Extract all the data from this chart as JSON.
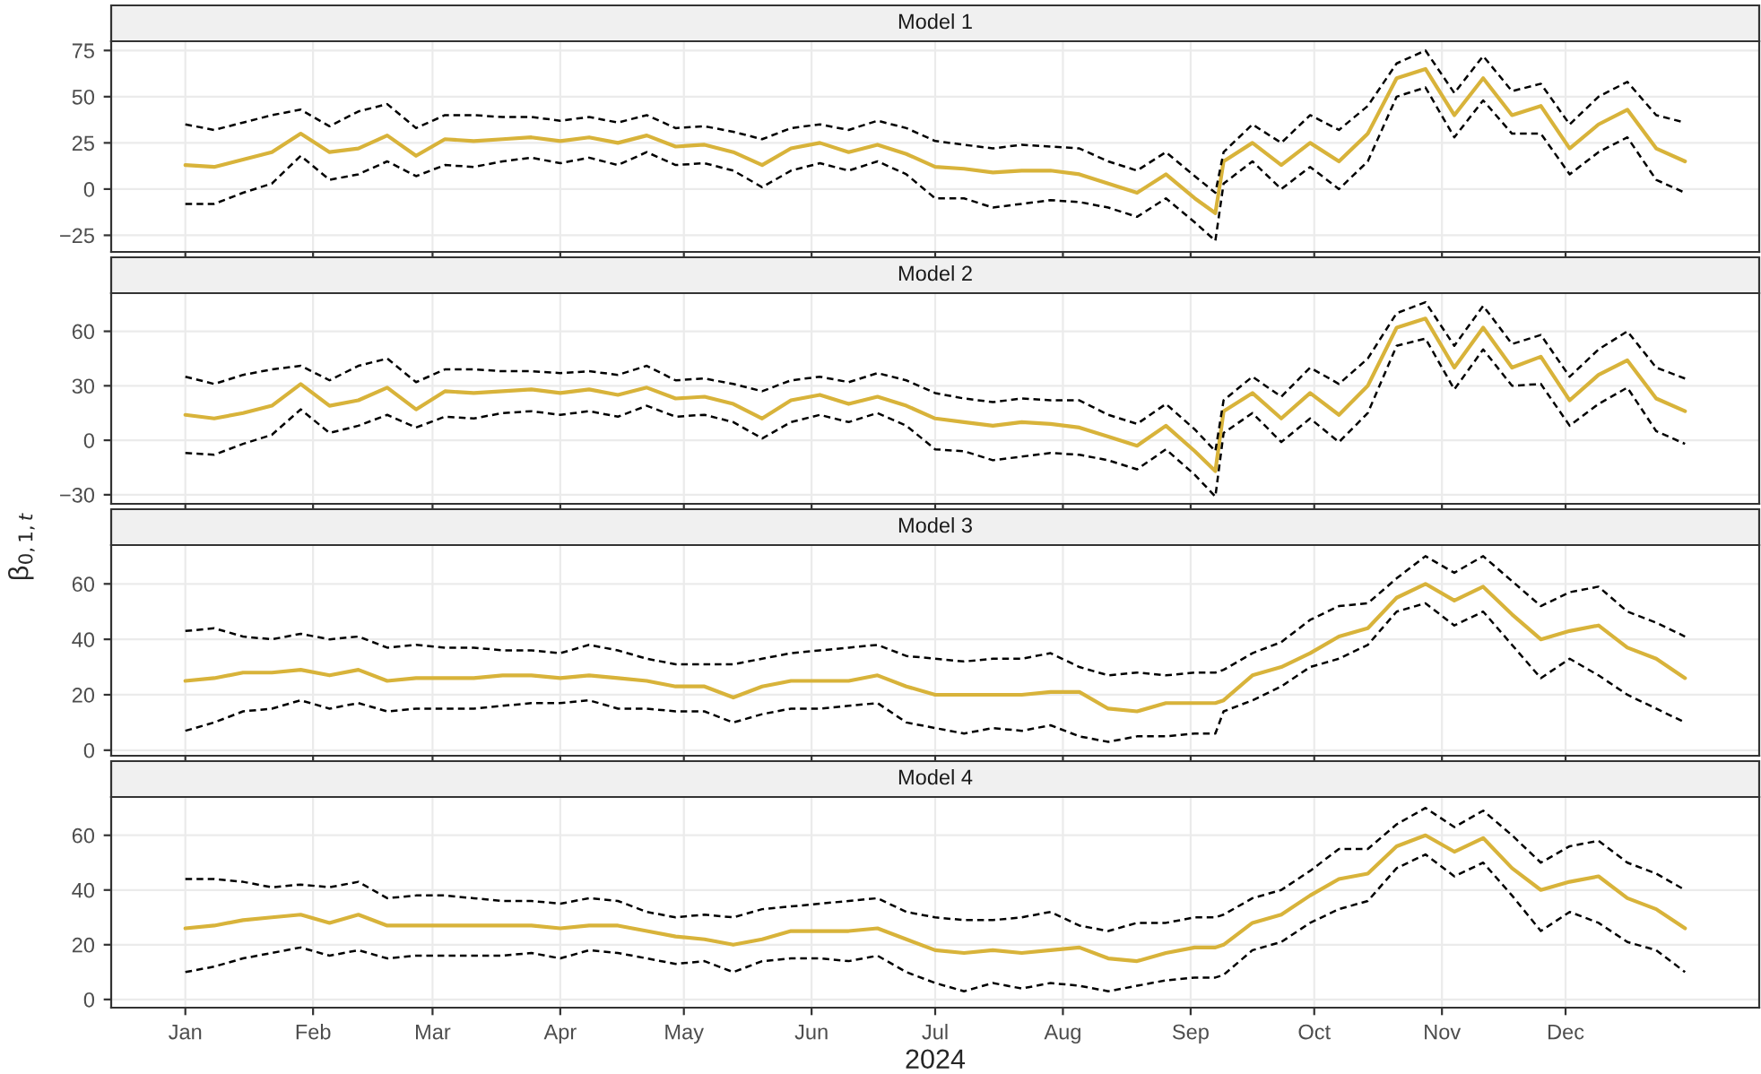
{
  "chart_data": [
    {
      "type": "line",
      "title": "Model 1",
      "x": [
        "2024-01-01",
        "2024-01-08",
        "2024-01-15",
        "2024-01-22",
        "2024-01-29",
        "2024-02-05",
        "2024-02-12",
        "2024-02-19",
        "2024-02-26",
        "2024-03-04",
        "2024-03-11",
        "2024-03-18",
        "2024-03-25",
        "2024-04-01",
        "2024-04-08",
        "2024-04-15",
        "2024-04-22",
        "2024-04-29",
        "2024-05-06",
        "2024-05-13",
        "2024-05-20",
        "2024-05-27",
        "2024-06-03",
        "2024-06-10",
        "2024-06-17",
        "2024-06-24",
        "2024-07-01",
        "2024-07-08",
        "2024-07-15",
        "2024-07-22",
        "2024-07-29",
        "2024-08-05",
        "2024-08-12",
        "2024-08-19",
        "2024-08-26",
        "2024-09-02",
        "2024-09-07",
        "2024-09-09",
        "2024-09-16",
        "2024-09-23",
        "2024-09-30",
        "2024-10-07",
        "2024-10-14",
        "2024-10-21",
        "2024-10-28",
        "2024-11-04",
        "2024-11-11",
        "2024-11-18",
        "2024-11-25",
        "2024-12-02",
        "2024-12-09",
        "2024-12-16",
        "2024-12-23",
        "2024-12-30"
      ],
      "series": [
        {
          "color": "#d8b33a",
          "line_style": "solid",
          "values": [
            13,
            12,
            16,
            20,
            30,
            20,
            22,
            29,
            18,
            27,
            26,
            27,
            28,
            26,
            28,
            25,
            29,
            23,
            24,
            20,
            13,
            22,
            25,
            20,
            24,
            19,
            12,
            11,
            9,
            10,
            10,
            8,
            3,
            -2,
            8,
            -5,
            -13,
            15,
            25,
            13,
            25,
            15,
            30,
            60,
            65,
            40,
            60,
            40,
            45,
            22,
            35,
            43,
            22,
            15
          ]
        },
        {
          "color": "#000000",
          "line_style": "dashed",
          "values": [
            35,
            32,
            36,
            40,
            43,
            34,
            42,
            46,
            33,
            40,
            40,
            39,
            39,
            37,
            39,
            36,
            40,
            33,
            34,
            31,
            27,
            33,
            35,
            32,
            37,
            33,
            26,
            24,
            22,
            24,
            23,
            22,
            15,
            10,
            20,
            7,
            -2,
            20,
            35,
            25,
            40,
            32,
            45,
            68,
            75,
            52,
            72,
            53,
            57,
            35,
            50,
            58,
            40,
            36
          ]
        },
        {
          "color": "#000000",
          "line_style": "dashed",
          "values": [
            -8,
            -8,
            -2,
            3,
            18,
            5,
            8,
            15,
            7,
            13,
            12,
            15,
            17,
            14,
            17,
            13,
            20,
            13,
            14,
            10,
            1,
            10,
            14,
            10,
            15,
            8,
            -5,
            -5,
            -10,
            -8,
            -6,
            -7,
            -10,
            -15,
            -5,
            -18,
            -28,
            3,
            15,
            0,
            12,
            0,
            15,
            50,
            55,
            28,
            48,
            30,
            30,
            8,
            20,
            28,
            5,
            -2
          ]
        }
      ],
      "xlim": [
        "2023-12-14",
        "2025-01-17"
      ],
      "ylim": [
        -34,
        80
      ],
      "yticks": [
        {
          "value": -25,
          "label": "−25"
        },
        0,
        25,
        50,
        75
      ],
      "xticks": [
        {
          "value": "2024-01-01",
          "label": null
        },
        {
          "value": "2024-02-01",
          "label": null
        },
        {
          "value": "2024-03-01",
          "label": null
        },
        {
          "value": "2024-04-01",
          "label": null
        },
        {
          "value": "2024-05-01",
          "label": null
        },
        {
          "value": "2024-06-01",
          "label": null
        },
        {
          "value": "2024-07-01",
          "label": null
        },
        {
          "value": "2024-08-01",
          "label": null
        },
        {
          "value": "2024-09-01",
          "label": null
        },
        {
          "value": "2024-10-01",
          "label": null
        },
        {
          "value": "2024-11-01",
          "label": null
        },
        {
          "value": "2024-12-01",
          "label": null
        }
      ],
      "tick_labels": "y",
      "grid": true
    },
    {
      "type": "line",
      "title": "Model 2",
      "x": [
        "2024-01-01",
        "2024-01-08",
        "2024-01-15",
        "2024-01-22",
        "2024-01-29",
        "2024-02-05",
        "2024-02-12",
        "2024-02-19",
        "2024-02-26",
        "2024-03-04",
        "2024-03-11",
        "2024-03-18",
        "2024-03-25",
        "2024-04-01",
        "2024-04-08",
        "2024-04-15",
        "2024-04-22",
        "2024-04-29",
        "2024-05-06",
        "2024-05-13",
        "2024-05-20",
        "2024-05-27",
        "2024-06-03",
        "2024-06-10",
        "2024-06-17",
        "2024-06-24",
        "2024-07-01",
        "2024-07-08",
        "2024-07-15",
        "2024-07-22",
        "2024-07-29",
        "2024-08-05",
        "2024-08-12",
        "2024-08-19",
        "2024-08-26",
        "2024-09-02",
        "2024-09-07",
        "2024-09-09",
        "2024-09-16",
        "2024-09-23",
        "2024-09-30",
        "2024-10-07",
        "2024-10-14",
        "2024-10-21",
        "2024-10-28",
        "2024-11-04",
        "2024-11-11",
        "2024-11-18",
        "2024-11-25",
        "2024-12-02",
        "2024-12-09",
        "2024-12-16",
        "2024-12-23",
        "2024-12-30"
      ],
      "series": [
        {
          "color": "#d8b33a",
          "line_style": "solid",
          "values": [
            14,
            12,
            15,
            19,
            31,
            19,
            22,
            29,
            17,
            27,
            26,
            27,
            28,
            26,
            28,
            25,
            29,
            23,
            24,
            20,
            12,
            22,
            25,
            20,
            24,
            19,
            12,
            10,
            8,
            10,
            9,
            7,
            2,
            -3,
            8,
            -6,
            -17,
            16,
            26,
            12,
            26,
            14,
            30,
            62,
            67,
            40,
            62,
            40,
            46,
            22,
            36,
            44,
            23,
            16
          ]
        },
        {
          "color": "#000000",
          "line_style": "dashed",
          "values": [
            35,
            31,
            36,
            39,
            41,
            33,
            41,
            45,
            32,
            39,
            39,
            38,
            38,
            37,
            38,
            36,
            41,
            33,
            34,
            31,
            27,
            33,
            35,
            32,
            37,
            33,
            26,
            23,
            21,
            23,
            22,
            22,
            14,
            9,
            20,
            6,
            -6,
            22,
            35,
            24,
            40,
            31,
            45,
            70,
            76,
            52,
            74,
            53,
            58,
            35,
            50,
            60,
            40,
            34
          ]
        },
        {
          "color": "#000000",
          "line_style": "dashed",
          "values": [
            -7,
            -8,
            -2,
            3,
            17,
            4,
            8,
            14,
            7,
            13,
            12,
            15,
            16,
            14,
            16,
            13,
            19,
            13,
            14,
            10,
            1,
            10,
            14,
            10,
            15,
            8,
            -5,
            -6,
            -11,
            -9,
            -7,
            -8,
            -11,
            -16,
            -5,
            -19,
            -31,
            4,
            15,
            -1,
            12,
            -1,
            15,
            52,
            56,
            28,
            50,
            30,
            31,
            8,
            20,
            29,
            5,
            -2
          ]
        }
      ],
      "xlim": [
        "2023-12-14",
        "2025-01-17"
      ],
      "ylim": [
        -35,
        81
      ],
      "yticks": [
        {
          "value": -30,
          "label": "−30"
        },
        0,
        30,
        60
      ],
      "xticks": [
        {
          "value": "2024-01-01",
          "label": null
        },
        {
          "value": "2024-02-01",
          "label": null
        },
        {
          "value": "2024-03-01",
          "label": null
        },
        {
          "value": "2024-04-01",
          "label": null
        },
        {
          "value": "2024-05-01",
          "label": null
        },
        {
          "value": "2024-06-01",
          "label": null
        },
        {
          "value": "2024-07-01",
          "label": null
        },
        {
          "value": "2024-08-01",
          "label": null
        },
        {
          "value": "2024-09-01",
          "label": null
        },
        {
          "value": "2024-10-01",
          "label": null
        },
        {
          "value": "2024-11-01",
          "label": null
        },
        {
          "value": "2024-12-01",
          "label": null
        }
      ],
      "tick_labels": "y",
      "grid": true
    },
    {
      "type": "line",
      "title": "Model 3",
      "ylabel": "β$_{0,1,t}$",
      "x": [
        "2024-01-01",
        "2024-01-08",
        "2024-01-15",
        "2024-01-22",
        "2024-01-29",
        "2024-02-05",
        "2024-02-12",
        "2024-02-19",
        "2024-02-26",
        "2024-03-04",
        "2024-03-11",
        "2024-03-18",
        "2024-03-25",
        "2024-04-01",
        "2024-04-08",
        "2024-04-15",
        "2024-04-22",
        "2024-04-29",
        "2024-05-06",
        "2024-05-13",
        "2024-05-20",
        "2024-05-27",
        "2024-06-03",
        "2024-06-10",
        "2024-06-17",
        "2024-06-24",
        "2024-07-01",
        "2024-07-08",
        "2024-07-15",
        "2024-07-22",
        "2024-07-29",
        "2024-08-05",
        "2024-08-12",
        "2024-08-19",
        "2024-08-26",
        "2024-09-02",
        "2024-09-07",
        "2024-09-09",
        "2024-09-16",
        "2024-09-23",
        "2024-09-30",
        "2024-10-07",
        "2024-10-14",
        "2024-10-21",
        "2024-10-28",
        "2024-11-04",
        "2024-11-11",
        "2024-11-18",
        "2024-11-25",
        "2024-12-02",
        "2024-12-09",
        "2024-12-16",
        "2024-12-23",
        "2024-12-30"
      ],
      "series": [
        {
          "color": "#d8b33a",
          "line_style": "solid",
          "values": [
            25,
            26,
            28,
            28,
            29,
            27,
            29,
            25,
            26,
            26,
            26,
            27,
            27,
            26,
            27,
            26,
            25,
            23,
            23,
            19,
            23,
            25,
            25,
            25,
            27,
            23,
            20,
            20,
            20,
            20,
            21,
            21,
            15,
            14,
            17,
            17,
            17,
            18,
            27,
            30,
            35,
            41,
            44,
            55,
            60,
            54,
            59,
            49,
            40,
            43,
            45,
            37,
            33,
            26
          ]
        },
        {
          "color": "#000000",
          "line_style": "dashed",
          "values": [
            43,
            44,
            41,
            40,
            42,
            40,
            41,
            37,
            38,
            37,
            37,
            36,
            36,
            35,
            38,
            36,
            33,
            31,
            31,
            31,
            33,
            35,
            36,
            37,
            38,
            34,
            33,
            32,
            33,
            33,
            35,
            30,
            27,
            28,
            27,
            28,
            28,
            29,
            35,
            39,
            47,
            52,
            53,
            62,
            70,
            64,
            70,
            61,
            52,
            57,
            59,
            50,
            46,
            41
          ]
        },
        {
          "color": "#000000",
          "line_style": "dashed",
          "values": [
            7,
            10,
            14,
            15,
            18,
            15,
            17,
            14,
            15,
            15,
            15,
            16,
            17,
            17,
            18,
            15,
            15,
            14,
            14,
            10,
            13,
            15,
            15,
            16,
            17,
            10,
            8,
            6,
            8,
            7,
            9,
            5,
            3,
            5,
            5,
            6,
            6,
            14,
            18,
            23,
            30,
            33,
            38,
            50,
            53,
            45,
            50,
            38,
            26,
            33,
            27,
            20,
            15,
            10
          ]
        }
      ],
      "xlim": [
        "2023-12-14",
        "2025-01-17"
      ],
      "ylim": [
        -2,
        74
      ],
      "yticks": [
        0,
        20,
        40,
        60
      ],
      "xticks": [
        {
          "value": "2024-01-01",
          "label": null
        },
        {
          "value": "2024-02-01",
          "label": null
        },
        {
          "value": "2024-03-01",
          "label": null
        },
        {
          "value": "2024-04-01",
          "label": null
        },
        {
          "value": "2024-05-01",
          "label": null
        },
        {
          "value": "2024-06-01",
          "label": null
        },
        {
          "value": "2024-07-01",
          "label": null
        },
        {
          "value": "2024-08-01",
          "label": null
        },
        {
          "value": "2024-09-01",
          "label": null
        },
        {
          "value": "2024-10-01",
          "label": null
        },
        {
          "value": "2024-11-01",
          "label": null
        },
        {
          "value": "2024-12-01",
          "label": null
        }
      ],
      "tick_labels": "y",
      "grid": true
    },
    {
      "type": "line",
      "title": "Model 4",
      "xlabel": "2024",
      "x": [
        "2024-01-01",
        "2024-01-08",
        "2024-01-15",
        "2024-01-22",
        "2024-01-29",
        "2024-02-05",
        "2024-02-12",
        "2024-02-19",
        "2024-02-26",
        "2024-03-04",
        "2024-03-11",
        "2024-03-18",
        "2024-03-25",
        "2024-04-01",
        "2024-04-08",
        "2024-04-15",
        "2024-04-22",
        "2024-04-29",
        "2024-05-06",
        "2024-05-13",
        "2024-05-20",
        "2024-05-27",
        "2024-06-03",
        "2024-06-10",
        "2024-06-17",
        "2024-06-24",
        "2024-07-01",
        "2024-07-08",
        "2024-07-15",
        "2024-07-22",
        "2024-07-29",
        "2024-08-05",
        "2024-08-12",
        "2024-08-19",
        "2024-08-26",
        "2024-09-02",
        "2024-09-07",
        "2024-09-09",
        "2024-09-16",
        "2024-09-23",
        "2024-09-30",
        "2024-10-07",
        "2024-10-14",
        "2024-10-21",
        "2024-10-28",
        "2024-11-04",
        "2024-11-11",
        "2024-11-18",
        "2024-11-25",
        "2024-12-02",
        "2024-12-09",
        "2024-12-16",
        "2024-12-23",
        "2024-12-30"
      ],
      "series": [
        {
          "color": "#d8b33a",
          "line_style": "solid",
          "values": [
            26,
            27,
            29,
            30,
            31,
            28,
            31,
            27,
            27,
            27,
            27,
            27,
            27,
            26,
            27,
            27,
            25,
            23,
            22,
            20,
            22,
            25,
            25,
            25,
            26,
            22,
            18,
            17,
            18,
            17,
            18,
            19,
            15,
            14,
            17,
            19,
            19,
            20,
            28,
            31,
            38,
            44,
            46,
            56,
            60,
            54,
            59,
            48,
            40,
            43,
            45,
            37,
            33,
            26
          ]
        },
        {
          "color": "#000000",
          "line_style": "dashed",
          "values": [
            44,
            44,
            43,
            41,
            42,
            41,
            43,
            37,
            38,
            38,
            37,
            36,
            36,
            35,
            37,
            36,
            32,
            30,
            31,
            30,
            33,
            34,
            35,
            36,
            37,
            32,
            30,
            29,
            29,
            30,
            32,
            27,
            25,
            28,
            28,
            30,
            30,
            31,
            37,
            40,
            47,
            55,
            55,
            64,
            70,
            63,
            69,
            60,
            50,
            56,
            58,
            50,
            46,
            40
          ]
        },
        {
          "color": "#000000",
          "line_style": "dashed",
          "values": [
            10,
            12,
            15,
            17,
            19,
            16,
            18,
            15,
            16,
            16,
            16,
            16,
            17,
            15,
            18,
            17,
            15,
            13,
            14,
            10,
            14,
            15,
            15,
            14,
            16,
            10,
            6,
            3,
            6,
            4,
            6,
            5,
            3,
            5,
            7,
            8,
            8,
            9,
            18,
            21,
            28,
            33,
            36,
            48,
            53,
            45,
            50,
            38,
            25,
            32,
            28,
            21,
            18,
            10
          ]
        }
      ],
      "xlim": [
        "2023-12-14",
        "2025-01-17"
      ],
      "ylim": [
        -3,
        74
      ],
      "yticks": [
        0,
        20,
        40,
        60
      ],
      "xticks": [
        {
          "value": "2024-01-01",
          "label": "Jan"
        },
        {
          "value": "2024-02-01",
          "label": "Feb"
        },
        {
          "value": "2024-03-01",
          "label": "Mar"
        },
        {
          "value": "2024-04-01",
          "label": "Apr"
        },
        {
          "value": "2024-05-01",
          "label": "May"
        },
        {
          "value": "2024-06-01",
          "label": "Jun"
        },
        {
          "value": "2024-07-01",
          "label": "Jul"
        },
        {
          "value": "2024-08-01",
          "label": "Aug"
        },
        {
          "value": "2024-09-01",
          "label": "Sep"
        },
        {
          "value": "2024-10-01",
          "label": "Oct"
        },
        {
          "value": "2024-11-01",
          "label": "Nov"
        },
        {
          "value": "2024-12-01",
          "label": "Dec"
        }
      ],
      "grid": true
    }
  ]
}
